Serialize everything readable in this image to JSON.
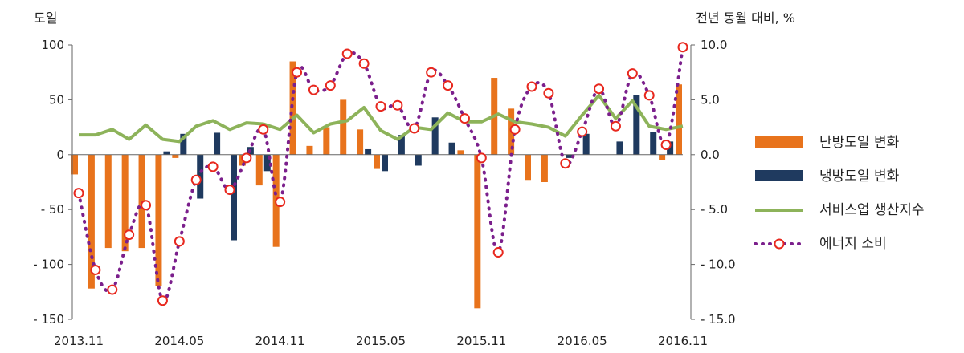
{
  "chart_data": {
    "type": "bar",
    "left_axis_title": "도일",
    "right_axis_title": "전년 동월 대비, %",
    "x_tick_labels": [
      "2013.11",
      "2014.05",
      "2014.11",
      "2015.05",
      "2015.11",
      "2016.05",
      "2016.11"
    ],
    "y_left_ticks": [
      "100",
      "50",
      "0",
      "- 50",
      "- 100",
      "- 150"
    ],
    "y_right_ticks": [
      "10.0",
      "5.0",
      "0.0",
      "- 5.0",
      "- 10.0",
      "- 15.0"
    ],
    "ylim_left": [
      -150,
      100
    ],
    "ylim_right": [
      -15,
      10
    ],
    "grid": false,
    "legend_position": "right",
    "categories": [
      "2013.11",
      "2013.12",
      "2014.01",
      "2014.02",
      "2014.03",
      "2014.04",
      "2014.05",
      "2014.06",
      "2014.07",
      "2014.08",
      "2014.09",
      "2014.10",
      "2014.11",
      "2014.12",
      "2015.01",
      "2015.02",
      "2015.03",
      "2015.04",
      "2015.05",
      "2015.06",
      "2015.07",
      "2015.08",
      "2015.09",
      "2015.10",
      "2015.11",
      "2015.12",
      "2016.01",
      "2016.02",
      "2016.03",
      "2016.04",
      "2016.05",
      "2016.06",
      "2016.07",
      "2016.08",
      "2016.09",
      "2016.10",
      "2016.11"
    ],
    "series": [
      {
        "name": "난방도일 변화",
        "type": "bar",
        "axis": "left",
        "color": "#E8731C",
        "values": [
          -18,
          -122,
          -85,
          -88,
          -85,
          -120,
          -3,
          0,
          0,
          0,
          -10,
          -28,
          -84,
          85,
          8,
          25,
          50,
          23,
          -13,
          0,
          0,
          0,
          0,
          4,
          -140,
          70,
          42,
          -23,
          -25,
          0,
          0,
          0,
          0,
          0,
          0,
          -5,
          64
        ]
      },
      {
        "name": "냉방도일 변화",
        "type": "bar",
        "axis": "left",
        "color": "#1F3A5F",
        "values": [
          0,
          0,
          0,
          0,
          0,
          3,
          19,
          -40,
          20,
          -78,
          7,
          -15,
          0,
          0,
          0,
          0,
          0,
          5,
          -15,
          18,
          -10,
          34,
          11,
          0,
          0,
          0,
          0,
          0,
          0,
          -3,
          19,
          0,
          12,
          54,
          21,
          12,
          0
        ]
      },
      {
        "name": "서비스업 생산지수",
        "type": "line",
        "axis": "right",
        "color": "#8DB35A",
        "values": [
          1.8,
          1.8,
          2.3,
          1.4,
          2.7,
          1.4,
          1.2,
          2.6,
          3.1,
          2.3,
          2.9,
          2.8,
          2.3,
          3.6,
          2.0,
          2.8,
          3.1,
          4.3,
          2.2,
          1.4,
          2.5,
          2.3,
          3.8,
          3.0,
          3.0,
          3.7,
          3.0,
          2.8,
          2.5,
          1.7,
          3.6,
          5.4,
          3.3,
          4.9,
          2.6,
          2.3,
          2.6
        ]
      },
      {
        "name": "에너지 소비",
        "type": "line",
        "axis": "right",
        "color": "#7B1F8C",
        "marker_color": "#E8281E",
        "values": [
          -3.5,
          -10.5,
          -12.3,
          -7.3,
          -4.6,
          -13.3,
          -7.9,
          -2.3,
          -1.1,
          -3.2,
          -0.3,
          2.3,
          -4.3,
          7.5,
          5.9,
          6.3,
          9.2,
          8.3,
          4.4,
          4.5,
          2.4,
          7.5,
          6.3,
          3.3,
          -0.3,
          -8.9,
          2.3,
          6.2,
          5.6,
          -0.8,
          2.1,
          6.0,
          2.6,
          7.4,
          5.4,
          0.9,
          9.8
        ]
      }
    ]
  }
}
